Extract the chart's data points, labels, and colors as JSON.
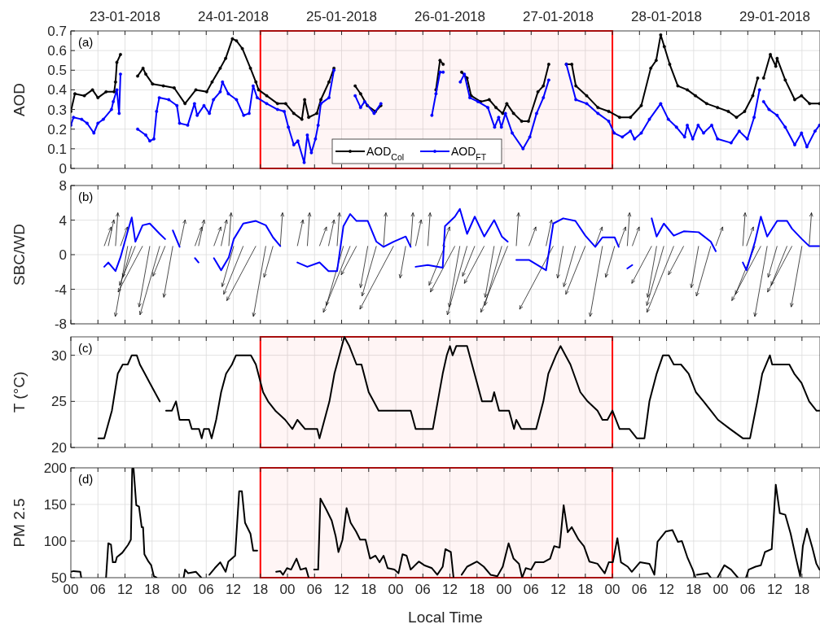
{
  "chart_data": [
    {
      "type": "line",
      "ylabel": "AOD",
      "annotations": [
        "(a)",
        "23-01-2018",
        "24-01-2018",
        "25-01-2018",
        "26-01-2018",
        "27-01-2018",
        "28-01-2018",
        "29-01-2018"
      ],
      "xlim": [
        0,
        166
      ],
      "ylim": [
        0,
        0.7
      ],
      "yticks": [
        0,
        0.1,
        0.2,
        0.3,
        0.4,
        0.5,
        0.6,
        0.7
      ],
      "xticks": [
        0,
        6,
        12,
        18,
        24,
        30,
        36,
        42,
        48,
        54,
        60,
        66,
        72,
        78,
        84,
        90,
        96,
        102,
        108,
        114,
        120,
        126,
        132,
        138,
        144,
        150,
        156,
        162
      ],
      "tick_labels": "y",
      "grid": true,
      "legend": "bottom",
      "marker": "circle",
      "line_style": "solid",
      "bands": [
        {
          "axis": "x",
          "from": 42,
          "to": 120,
          "color": "#ff0000"
        }
      ],
      "series": [
        {
          "name": "AOD$_{Col}$",
          "color": "#000000",
          "x": [
            0,
            0.9,
            3,
            4.8,
            6,
            7.8,
            9.6,
            9.9,
            10.2,
            11,
            13,
            14.8,
            16,
            16.6,
            18.1,
            20.5,
            22.9,
            25.3,
            27.7,
            30.1,
            31.3,
            33.1,
            34.3,
            35.8,
            36.7,
            38,
            39.8,
            41,
            41.6,
            43.4,
            45.8,
            47.6,
            49.4,
            51.2,
            51.8,
            52.7,
            54.5,
            55.4,
            57.2,
            58.3,
            61,
            63,
            64.2,
            65.7,
            67.5,
            68.7,
            75,
            80.9,
            81.8,
            82.5,
            84,
            86.6,
            87.8,
            88.7,
            90.8,
            92.7,
            94.2,
            95.7,
            96.6,
            98.1,
            99.9,
            101.4,
            103.5,
            104.7,
            105.9,
            108,
            109.8,
            111,
            111.9,
            114.3,
            116.8,
            119.2,
            121.6,
            124,
            126.4,
            128.5,
            129.7,
            130.7,
            131.5,
            132.7,
            134.5,
            136.6,
            138.4,
            140.9,
            143.3,
            145.7,
            147.5,
            149.3,
            151.1,
            152.2,
            152.8,
            153.5,
            155,
            156.2,
            156.5,
            158.3,
            160.4,
            161.9,
            163.7,
            165.9
          ],
          "values": [
            0.29,
            0.38,
            0.37,
            0.4,
            0.36,
            0.39,
            0.39,
            0.44,
            0.54,
            0.58,
            null,
            0.47,
            0.51,
            0.48,
            0.43,
            0.42,
            0.41,
            0.33,
            0.4,
            0.39,
            0.44,
            0.51,
            0.56,
            0.66,
            0.65,
            0.61,
            0.51,
            0.44,
            0.4,
            0.37,
            0.33,
            0.33,
            0.28,
            0.25,
            0.35,
            0.26,
            0.28,
            0.35,
            0.44,
            0.51,
            null,
            0.42,
            0.38,
            0.32,
            0.29,
            0.32,
            null,
            0.4,
            0.55,
            0.53,
            null,
            0.49,
            0.46,
            0.37,
            0.34,
            0.35,
            0.31,
            0.28,
            0.33,
            0.28,
            0.24,
            0.24,
            0.39,
            0.42,
            0.53,
            null,
            0.53,
            0.53,
            0.42,
            0.37,
            0.31,
            0.29,
            0.26,
            0.26,
            0.32,
            0.51,
            0.55,
            0.68,
            0.62,
            0.53,
            0.42,
            0.4,
            0.37,
            0.33,
            0.31,
            0.29,
            0.26,
            0.29,
            0.37,
            0.46,
            null,
            0.46,
            0.58,
            0.52,
            0.56,
            0.45,
            0.35,
            0.37,
            0.33,
            0.33
          ]
        },
        {
          "name": "AOD$_{FT}$",
          "color": "#0000ff",
          "x": [
            0,
            0.6,
            2.4,
            3.6,
            5.1,
            6,
            7.2,
            9,
            9.4,
            10.2,
            10.7,
            11,
            13,
            14.8,
            16.6,
            17.5,
            18.4,
            19,
            19.6,
            21.7,
            23.5,
            24.1,
            25.9,
            27.4,
            28,
            29.5,
            30.7,
            31.6,
            33.1,
            33.6,
            34.9,
            36.7,
            38.3,
            39.5,
            40.4,
            41.3,
            43.4,
            45.8,
            47.3,
            48.2,
            49.4,
            50.3,
            51.7,
            52.4,
            53.3,
            54.2,
            54.8,
            55.4,
            57.2,
            58.3,
            61,
            63,
            64.2,
            65.1,
            67.2,
            68.7,
            75,
            80,
            80.9,
            81.8,
            82.5,
            84,
            86.3,
            87.2,
            88.4,
            90.2,
            92.4,
            93.9,
            94.8,
            95.4,
            96.3,
            97.8,
            100.2,
            101.7,
            103.2,
            104.7,
            105.9,
            108,
            109.8,
            111.9,
            114.3,
            116.8,
            119.2,
            120.4,
            122.2,
            124,
            124.9,
            126.4,
            128.2,
            130.7,
            132.4,
            134.2,
            136,
            136.6,
            137.8,
            139,
            140.2,
            142,
            143.3,
            146.3,
            148.1,
            149.9,
            151.4,
            152.6,
            153,
            153.5,
            154.7,
            156.5,
            158.3,
            160.4,
            161.9,
            163.1,
            164.9,
            165.9
          ],
          "values": [
            0.22,
            0.26,
            0.25,
            0.23,
            0.18,
            0.23,
            0.25,
            0.3,
            0.34,
            0.4,
            0.28,
            0.48,
            null,
            0.2,
            0.17,
            0.14,
            0.15,
            0.29,
            0.36,
            0.35,
            0.32,
            0.23,
            0.22,
            0.33,
            0.27,
            0.32,
            0.28,
            0.35,
            0.39,
            0.44,
            0.38,
            0.35,
            0.27,
            0.28,
            0.42,
            0.36,
            0.33,
            0.3,
            0.29,
            0.21,
            0.12,
            0.14,
            0.03,
            0.17,
            0.08,
            0.15,
            0.22,
            0.33,
            0.36,
            0.5,
            null,
            0.37,
            0.31,
            0.34,
            0.28,
            0.33,
            null,
            0.27,
            0.38,
            0.49,
            0.49,
            null,
            0.44,
            0.48,
            0.36,
            0.34,
            0.31,
            0.21,
            0.26,
            0.21,
            0.28,
            0.18,
            0.1,
            0.16,
            0.28,
            0.36,
            0.45,
            null,
            0.53,
            0.35,
            0.33,
            0.28,
            0.24,
            0.18,
            0.16,
            0.19,
            0.15,
            0.18,
            0.25,
            0.33,
            0.25,
            0.21,
            0.16,
            0.22,
            0.15,
            0.22,
            0.18,
            0.22,
            0.15,
            0.13,
            0.19,
            0.15,
            0.26,
            0.4,
            null,
            0.34,
            0.3,
            0.27,
            0.21,
            0.12,
            0.18,
            0.11,
            0.19,
            0.22
          ]
        }
      ]
    },
    {
      "type": "line",
      "ylabel": "SBC/WD",
      "annotations": [
        "(b)"
      ],
      "xlim": [
        0,
        166
      ],
      "ylim": [
        -8,
        8
      ],
      "yticks": [
        -8,
        -4,
        0,
        4,
        8
      ],
      "xticks": [
        0,
        6,
        12,
        18,
        24,
        30,
        36,
        42,
        48,
        54,
        60,
        66,
        72,
        78,
        84,
        90,
        96,
        102,
        108,
        114,
        120,
        126,
        132,
        138,
        144,
        150,
        156,
        162
      ],
      "tick_labels": "y",
      "grid": true,
      "line_style": "solid",
      "series": [
        {
          "color": "#0000ff",
          "x": [
            7.4,
            8.3,
            9.9,
            11,
            12.6,
            13.5,
            14.3,
            15.9,
            17.5,
            19.7,
            20.9,
            22,
            22.6,
            24.1,
            26,
            27.5,
            28.3,
            29.8,
            31.7,
            33.3,
            35,
            36.1,
            38.2,
            41,
            43.2,
            44.8,
            46.4,
            48.3,
            50.2,
            52.4,
            55.1,
            57.1,
            59,
            60.4,
            61.9,
            63.3,
            65.8,
            67.7,
            69.3,
            71.5,
            74.2,
            75.3,
            75.9,
            76.4,
            79.1,
            82.4,
            82.9,
            85.1,
            86.2,
            87.8,
            89.5,
            91.6,
            93.8,
            95.5,
            96.8,
            97.8,
            98.7,
            101.5,
            105.3,
            106.9,
            109.1,
            111.8,
            114,
            116.2,
            117.8,
            120.5,
            121.4,
            122.4,
            123.3,
            124.4,
            126.5,
            128.7,
            129.8,
            131.4,
            133.6,
            135.8,
            139.1,
            141.8,
            142.9,
            146,
            148.9,
            149.7,
            151.6,
            152.9,
            154.3,
            156.5,
            158.7,
            159.8,
            162,
            163.6,
            165.8
          ],
          "values": [
            -1.4,
            -0.9,
            -1.9,
            -0.3,
            2.7,
            4.3,
            1.5,
            3.4,
            3.6,
            2.4,
            1.8,
            null,
            2.8,
            0.9,
            null,
            -0.4,
            -0.9,
            null,
            -0.4,
            -1.8,
            -0.3,
            1.8,
            3.6,
            3.9,
            3.4,
            2,
            1,
            null,
            -0.9,
            -1.4,
            -0.9,
            -1.9,
            -1.9,
            3.3,
            4.7,
            3.9,
            3.9,
            1.5,
            0.9,
            1.5,
            2.1,
            0.9,
            null,
            -1.4,
            -1.2,
            -1.5,
            3.3,
            4.4,
            5.3,
            2.4,
            4.4,
            2.1,
            4,
            2.1,
            1.5,
            null,
            -0.6,
            -0.6,
            -1.8,
            3.6,
            4.2,
            3.9,
            2.2,
            0.9,
            2,
            2,
            0.9,
            null,
            -1.6,
            -1.2,
            null,
            4.2,
            2.1,
            3.6,
            2.2,
            2.7,
            2.6,
            1.5,
            0.4,
            null,
            -0.9,
            -1.8,
            1.5,
            4.4,
            2.1,
            3.9,
            3.9,
            3,
            1.8,
            1,
            1
          ]
        }
      ]
    },
    {
      "type": "line",
      "ylabel": "T (°C)",
      "annotations": [
        "(c)"
      ],
      "xlim": [
        0,
        166
      ],
      "ylim": [
        20,
        32
      ],
      "yticks": [
        20,
        25,
        30
      ],
      "xticks": [
        0,
        6,
        12,
        18,
        24,
        30,
        36,
        42,
        48,
        54,
        60,
        66,
        72,
        78,
        84,
        90,
        96,
        102,
        108,
        114,
        120,
        126,
        132,
        138,
        144,
        150,
        156,
        162
      ],
      "tick_labels": "y",
      "grid": true,
      "line_style": "solid",
      "bands": [
        {
          "axis": "x",
          "from": 42,
          "to": 120,
          "color": "#ff0000"
        }
      ],
      "series": [
        {
          "color": "#000000",
          "x": [
            6.1,
            7.4,
            9.1,
            10.4,
            11.5,
            12.6,
            13.5,
            14.6,
            15.3,
            16.4,
            17.5,
            18.6,
            19.7,
            20.4,
            21.1,
            22.4,
            23.3,
            24.1,
            26.2,
            26.8,
            28.4,
            29,
            29.5,
            30.6,
            31.2,
            32.2,
            33.3,
            34.4,
            35.7,
            36.6,
            39.9,
            41,
            42.6,
            43.7,
            45.3,
            47.5,
            49.1,
            50.2,
            51.9,
            54.6,
            55.1,
            57.3,
            58.4,
            59.5,
            60.6,
            61.7,
            63.3,
            64.4,
            66,
            67.1,
            68.2,
            75.3,
            76.4,
            80.2,
            81.3,
            82.4,
            83.3,
            84,
            84.6,
            85.4,
            87.8,
            88.9,
            91.1,
            93.3,
            93.8,
            94.9,
            97.1,
            98.2,
            98.7,
            99.8,
            103.1,
            104.7,
            105.8,
            107.5,
            108.5,
            109.6,
            110.7,
            112.9,
            114.5,
            116.7,
            117.8,
            118.9,
            120,
            121.6,
            123.8,
            125.4,
            127.1,
            128.2,
            129.8,
            131.2,
            132.5,
            133.6,
            135.2,
            136.9,
            138.5,
            140.2,
            141.8,
            143.4,
            146.1,
            148.9,
            150.5,
            152.1,
            153.2,
            154.9,
            155.4,
            159.2,
            160.3,
            161.9,
            163.6,
            165.2,
            165.9
          ],
          "values": [
            21,
            21,
            24,
            28,
            29,
            29,
            30,
            30,
            29,
            28,
            27,
            26,
            25,
            null,
            24,
            24,
            25,
            23,
            23,
            22,
            22,
            21,
            22,
            22,
            21,
            23,
            26,
            28,
            29,
            30,
            30,
            29,
            26,
            25,
            24,
            23,
            22,
            23,
            22,
            22,
            21,
            25,
            28,
            30,
            32,
            31,
            29,
            29,
            26,
            25,
            24,
            24,
            22,
            22,
            25,
            28,
            30,
            31,
            30,
            31,
            31,
            29,
            25,
            25,
            26,
            24,
            24,
            22,
            23,
            22,
            22,
            25,
            28,
            30,
            31,
            30,
            29,
            26,
            25,
            24,
            23,
            23,
            24,
            22,
            22,
            21,
            21,
            25,
            28,
            30,
            30,
            29,
            29,
            28,
            26,
            25,
            24,
            23,
            22,
            21,
            21,
            25,
            28,
            30,
            29,
            29,
            28,
            27,
            25,
            24,
            24
          ]
        }
      ]
    },
    {
      "type": "line",
      "xlabel": "Local Time",
      "ylabel": "PM 2.5",
      "annotations": [
        "(d)"
      ],
      "xlim": [
        0,
        166
      ],
      "ylim": [
        50,
        200
      ],
      "yticks": [
        50,
        100,
        150,
        200
      ],
      "xticks": [
        {
          "value": 0,
          "label": "00"
        },
        {
          "value": 6,
          "label": "06"
        },
        {
          "value": 12,
          "label": "12"
        },
        {
          "value": 18,
          "label": "18"
        },
        {
          "value": 24,
          "label": "00"
        },
        {
          "value": 30,
          "label": "06"
        },
        {
          "value": 36,
          "label": "12"
        },
        {
          "value": 42,
          "label": "18"
        },
        {
          "value": 48,
          "label": "00"
        },
        {
          "value": 54,
          "label": "06"
        },
        {
          "value": 60,
          "label": "12"
        },
        {
          "value": 66,
          "label": "18"
        },
        {
          "value": 72,
          "label": "00"
        },
        {
          "value": 78,
          "label": "06"
        },
        {
          "value": 84,
          "label": "12"
        },
        {
          "value": 90,
          "label": "18"
        },
        {
          "value": 96,
          "label": "00"
        },
        {
          "value": 102,
          "label": "06"
        },
        {
          "value": 108,
          "label": "12"
        },
        {
          "value": 114,
          "label": "18"
        },
        {
          "value": 120,
          "label": "00"
        },
        {
          "value": 126,
          "label": "06"
        },
        {
          "value": 132,
          "label": "12"
        },
        {
          "value": 138,
          "label": "18"
        },
        {
          "value": 144,
          "label": "00"
        },
        {
          "value": 150,
          "label": "06"
        },
        {
          "value": 156,
          "label": "12"
        },
        {
          "value": 162,
          "label": "18"
        }
      ],
      "grid": true,
      "line_style": "solid",
      "bands": [
        {
          "axis": "x",
          "from": 42,
          "to": 120,
          "color": "#ff0000"
        }
      ],
      "series": [
        {
          "color": "#000000",
          "x": [
            0,
            0.6,
            2.1,
            2.3,
            5,
            7.8,
            8.3,
            8.9,
            9.3,
            9.9,
            10.2,
            11.4,
            12.7,
            13.3,
            13.6,
            13.9,
            14.5,
            15.1,
            15.7,
            16,
            16.3,
            17.2,
            17.8,
            18.4,
            19,
            22,
            25,
            25.3,
            26,
            27.7,
            28.9,
            29.8,
            30.7,
            31.9,
            33.1,
            34.3,
            34.9,
            36.4,
            37.3,
            37.9,
            38.6,
            39.8,
            40.4,
            41.3,
            43,
            45.5,
            46.4,
            47,
            47.9,
            48.8,
            50,
            50.9,
            52.1,
            52.7,
            53.3,
            53.9,
            54.8,
            55.3,
            56.6,
            57.8,
            58.7,
            59.3,
            60.2,
            61.1,
            62,
            63.2,
            64.1,
            65.3,
            66.3,
            67.5,
            68.4,
            69.3,
            70.2,
            71.7,
            72.6,
            73.5,
            74.4,
            75.3,
            77.1,
            78.3,
            80,
            81.2,
            82.4,
            83,
            84.2,
            84.8,
            85.7,
            86.6,
            87.8,
            90,
            91.5,
            93,
            94.5,
            95.7,
            97,
            98.1,
            99.3,
            100,
            100.8,
            102,
            102.9,
            104.7,
            106.2,
            107.1,
            108.3,
            109.2,
            110.1,
            111,
            112.5,
            113.7,
            114.9,
            116.7,
            118.3,
            119.2,
            120.1,
            121.1,
            121.9,
            123.4,
            124.3,
            126.1,
            128.2,
            129.3,
            130,
            131.8,
            133.3,
            134.5,
            135.4,
            136.6,
            137.8,
            138.4,
            138.55,
            138.7,
            141.1,
            141.8,
            142.5,
            143.3,
            144.8,
            146.3,
            147.8,
            148.7,
            149.6,
            150.2,
            151.7,
            152.9,
            153.8,
            155.3,
            156.2,
            157.1,
            158.3,
            159.5,
            160.7,
            161.6,
            162.2,
            163.1,
            164.3,
            165.2,
            165.9
          ],
          "values": [
            58,
            59,
            58,
            50,
            null,
            50,
            97,
            95,
            71,
            71,
            78,
            84,
            95,
            102,
            199,
            199,
            149,
            147,
            119,
            119,
            82,
            72,
            67,
            52,
            50,
            null,
            50,
            61,
            56,
            58,
            50,
            null,
            54,
            63,
            71,
            58,
            72,
            80,
            168,
            168,
            125,
            110,
            87,
            87,
            null,
            58,
            59,
            54,
            63,
            61,
            76,
            61,
            63,
            50,
            null,
            61,
            61,
            158,
            143,
            128,
            106,
            85,
            102,
            145,
            125,
            113,
            102,
            102,
            76,
            80,
            71,
            80,
            63,
            61,
            56,
            82,
            80,
            61,
            72,
            67,
            63,
            54,
            65,
            89,
            85,
            50,
            null,
            54,
            65,
            72,
            65,
            54,
            52,
            65,
            97,
            76,
            69,
            50,
            63,
            61,
            71,
            71,
            76,
            93,
            91,
            149,
            112,
            119,
            102,
            93,
            72,
            69,
            56,
            71,
            71,
            104,
            71,
            65,
            58,
            71,
            69,
            54,
            99,
            113,
            115,
            99,
            100,
            78,
            61,
            50,
            null,
            54,
            56,
            50,
            null,
            50,
            67,
            61,
            50,
            null,
            50,
            61,
            65,
            67,
            85,
            89,
            177,
            138,
            136,
            110,
            76,
            52,
            93,
            117,
            91,
            69,
            61
          ]
        }
      ]
    }
  ]
}
